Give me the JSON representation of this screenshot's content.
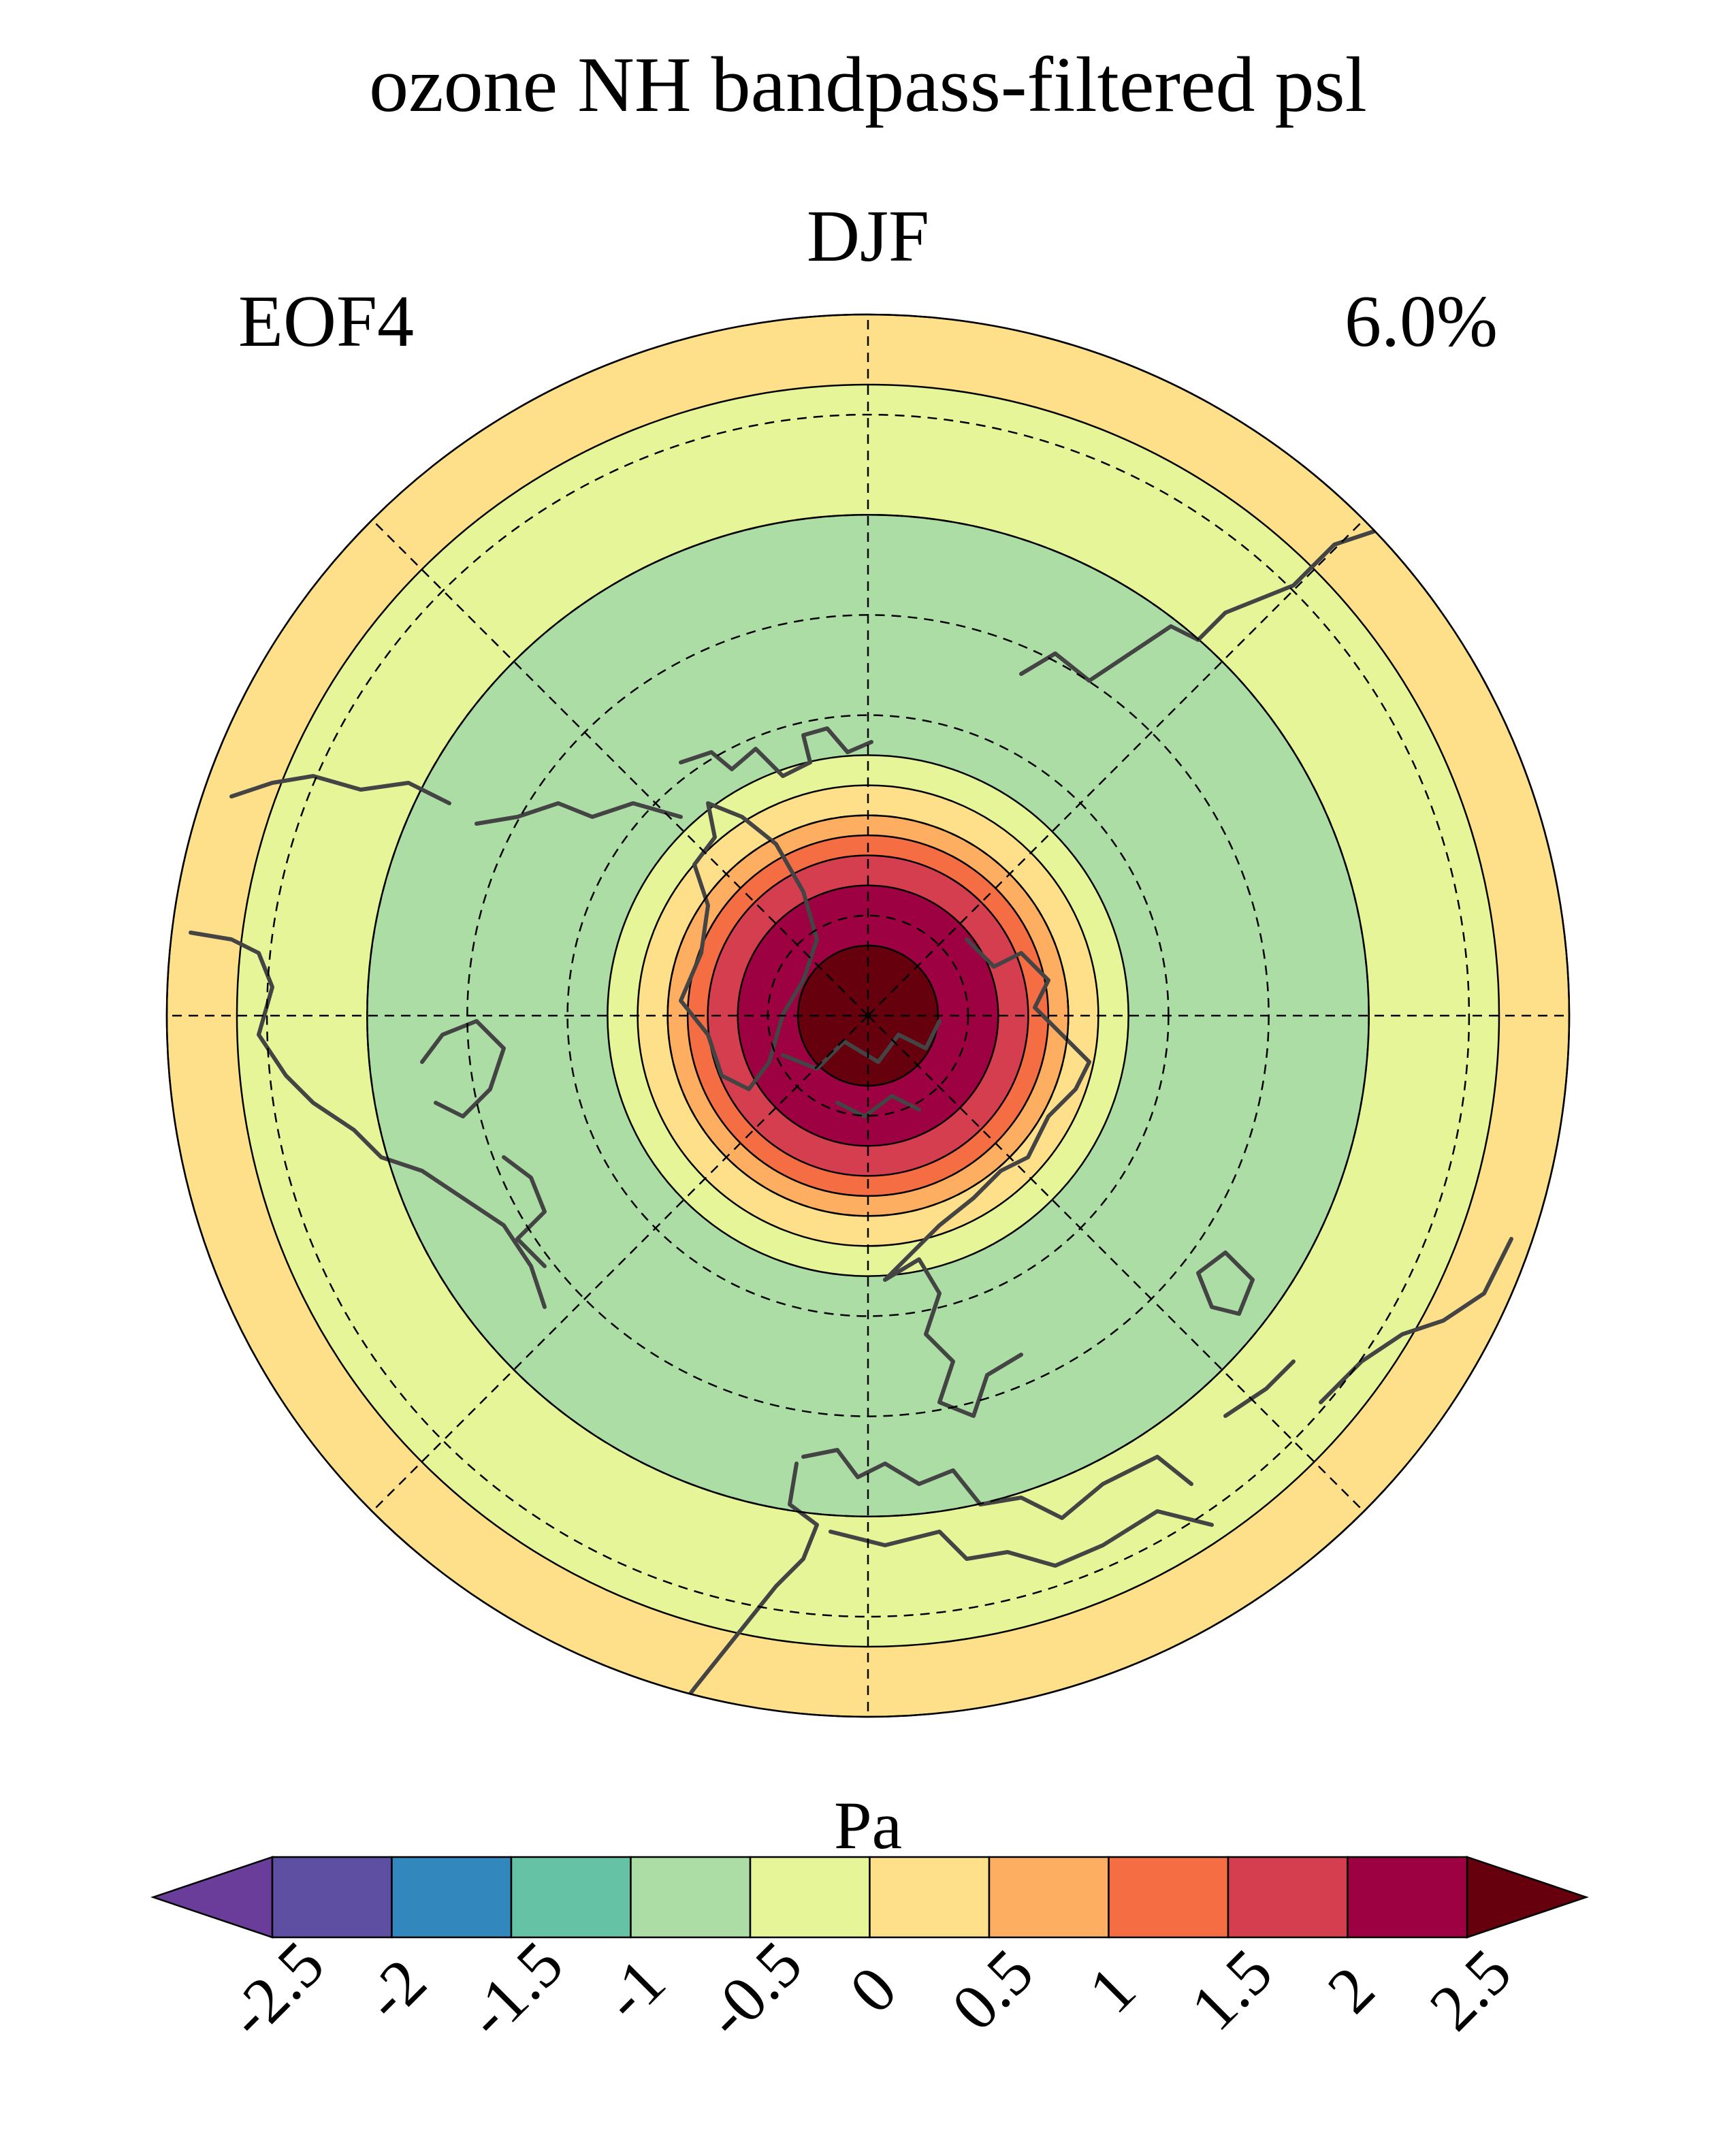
{
  "chart_data": {
    "type": "heatmap",
    "projection": "north-polar-stereographic",
    "title": "ozone NH bandpass-filtered psl",
    "season": "DJF",
    "mode": "EOF4",
    "variance_explained": "6.0%",
    "colorbar": {
      "label": "Pa",
      "levels": [
        -2.5,
        -2,
        -1.5,
        -1,
        -0.5,
        0,
        0.5,
        1,
        1.5,
        2,
        2.5
      ],
      "tick_labels": [
        "-2.5",
        "-2",
        "-1.5",
        "-1",
        "-0.5",
        "0",
        "0.5",
        "1",
        "1.5",
        "2",
        "2.5"
      ],
      "colors": [
        "#5e4fa2",
        "#3288bd",
        "#66c2a5",
        "#abdda4",
        "#e6f598",
        "#fee08b",
        "#fdae61",
        "#f46d43",
        "#d53e4f",
        "#9e0142"
      ],
      "under_color": "#6a3d9a",
      "over_color": "#67000d",
      "extend": "both"
    },
    "field": {
      "description": "zonally symmetric pattern: positive centred on the pole, negative ring at midlatitudes, positive again at the low-latitude edge",
      "rings": [
        {
          "lat_min": 83,
          "lat_max": 90,
          "value_range": [
            2.5,
            3.0
          ]
        },
        {
          "lat_min": 77,
          "lat_max": 83,
          "value_range": [
            2.0,
            2.5
          ]
        },
        {
          "lat_min": 74,
          "lat_max": 77,
          "value_range": [
            1.5,
            2.0
          ]
        },
        {
          "lat_min": 72,
          "lat_max": 74,
          "value_range": [
            1.0,
            1.5
          ]
        },
        {
          "lat_min": 70,
          "lat_max": 72,
          "value_range": [
            0.5,
            1.0
          ]
        },
        {
          "lat_min": 67,
          "lat_max": 70,
          "value_range": [
            0.0,
            0.5
          ]
        },
        {
          "lat_min": 64,
          "lat_max": 67,
          "value_range": [
            -0.5,
            0.0
          ]
        },
        {
          "lat_min": 40,
          "lat_max": 64,
          "value_range": [
            -1.0,
            -0.5
          ]
        },
        {
          "lat_min": 27,
          "lat_max": 40,
          "value_range": [
            -0.5,
            0.0
          ]
        },
        {
          "lat_min": 20,
          "lat_max": 27,
          "value_range": [
            0.0,
            0.5
          ]
        }
      ]
    },
    "gridlines": {
      "latitudes": [
        30,
        40,
        50,
        60,
        70,
        80
      ],
      "longitudes": [
        0,
        45,
        90,
        135,
        180,
        225,
        270,
        315
      ],
      "style": "dashed"
    },
    "map_extent": {
      "lat_min": 20,
      "lat_max": 90
    },
    "coastlines": true
  }
}
